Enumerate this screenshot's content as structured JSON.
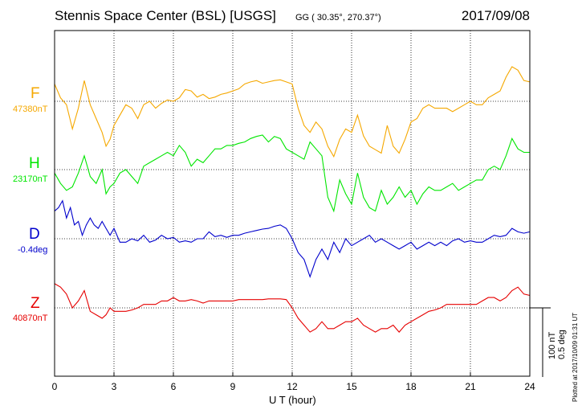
{
  "header": {
    "title": "Stennis Space Center (BSL)  [USGS]",
    "coords": "GG ( 30.35°, 270.37°)",
    "date": "2017/09/08"
  },
  "components": [
    {
      "id": "F",
      "letter": "F",
      "baseline": "47380nT",
      "color": "#f5a800"
    },
    {
      "id": "H",
      "letter": "H",
      "baseline": "23170nT",
      "color": "#00e600"
    },
    {
      "id": "D",
      "letter": "D",
      "baseline": "-0.4deg",
      "color": "#0000cc"
    },
    {
      "id": "Z",
      "letter": "Z",
      "baseline": "40870nT",
      "color": "#e60000"
    }
  ],
  "scale": {
    "nt": "100 nT",
    "deg": "0.5 deg"
  },
  "plotted_note": "Plotted at 2017/10/09 01:31 UT",
  "chart_data": {
    "type": "line",
    "xlabel": "U T (hour)",
    "xlim": [
      0,
      24
    ],
    "x_ticks": [
      0,
      3,
      6,
      9,
      12,
      15,
      18,
      21,
      24
    ],
    "grid": true,
    "units": "deviation from baseline, nT (D in 0.5 deg per 100 nT)",
    "series": [
      {
        "name": "F",
        "color": "#f5a800",
        "x": [
          0,
          0.3,
          0.6,
          0.9,
          1.2,
          1.5,
          1.8,
          2.1,
          2.4,
          2.6,
          2.8,
          3.0,
          3.3,
          3.6,
          3.9,
          4.2,
          4.5,
          4.8,
          5.1,
          5.4,
          5.7,
          6.0,
          6.3,
          6.6,
          6.9,
          7.2,
          7.5,
          7.8,
          8.1,
          8.4,
          8.7,
          9.0,
          9.3,
          9.6,
          9.9,
          10.2,
          10.5,
          10.8,
          11.1,
          11.4,
          11.7,
          12.0,
          12.3,
          12.6,
          12.9,
          13.2,
          13.5,
          13.8,
          14.1,
          14.4,
          14.7,
          15.0,
          15.3,
          15.6,
          15.9,
          16.2,
          16.5,
          16.8,
          17.1,
          17.4,
          17.7,
          18.0,
          18.3,
          18.6,
          18.9,
          19.2,
          19.5,
          19.8,
          20.1,
          20.4,
          20.7,
          21.0,
          21.3,
          21.6,
          21.9,
          22.2,
          22.5,
          22.8,
          23.1,
          23.4,
          23.7,
          24.0
        ],
        "y": [
          25,
          5,
          -5,
          -40,
          -10,
          30,
          -5,
          -25,
          -45,
          -65,
          -55,
          -35,
          -20,
          -5,
          -10,
          -25,
          -5,
          0,
          -10,
          -3,
          2,
          0,
          5,
          17,
          15,
          6,
          10,
          4,
          6,
          10,
          12,
          15,
          18,
          25,
          28,
          30,
          26,
          28,
          30,
          31,
          28,
          25,
          -10,
          -35,
          -45,
          -30,
          -40,
          -65,
          -80,
          -55,
          -40,
          -45,
          -20,
          -50,
          -65,
          -70,
          -75,
          -35,
          -65,
          -75,
          -55,
          -30,
          -25,
          -10,
          -5,
          -10,
          -10,
          -10,
          -15,
          -10,
          -5,
          0,
          -5,
          -5,
          5,
          10,
          15,
          35,
          50,
          45,
          30,
          28
        ]
      },
      {
        "name": "H",
        "color": "#00e600",
        "x": [
          0,
          0.3,
          0.6,
          0.9,
          1.2,
          1.5,
          1.8,
          2.1,
          2.4,
          2.6,
          2.8,
          3.0,
          3.3,
          3.6,
          3.9,
          4.2,
          4.5,
          4.8,
          5.1,
          5.4,
          5.7,
          6.0,
          6.3,
          6.6,
          6.9,
          7.2,
          7.5,
          7.8,
          8.1,
          8.4,
          8.7,
          9.0,
          9.3,
          9.6,
          9.9,
          10.2,
          10.5,
          10.8,
          11.1,
          11.4,
          11.7,
          12.0,
          12.3,
          12.6,
          12.9,
          13.2,
          13.5,
          13.8,
          14.1,
          14.4,
          14.7,
          15.0,
          15.3,
          15.6,
          15.9,
          16.2,
          16.5,
          16.8,
          17.1,
          17.4,
          17.7,
          18.0,
          18.3,
          18.6,
          18.9,
          19.2,
          19.5,
          19.8,
          20.1,
          20.4,
          20.7,
          21.0,
          21.3,
          21.6,
          21.9,
          22.2,
          22.5,
          22.8,
          23.1,
          23.4,
          23.7,
          24.0
        ],
        "y": [
          -5,
          -20,
          -30,
          -25,
          -5,
          20,
          -10,
          -20,
          0,
          -35,
          -25,
          -20,
          -5,
          0,
          -10,
          -20,
          5,
          10,
          15,
          20,
          25,
          20,
          35,
          25,
          5,
          15,
          10,
          20,
          30,
          30,
          35,
          35,
          38,
          40,
          45,
          48,
          50,
          40,
          48,
          45,
          30,
          25,
          20,
          15,
          40,
          30,
          20,
          -40,
          -60,
          -15,
          -35,
          -50,
          -5,
          -40,
          -55,
          -60,
          -30,
          -50,
          -40,
          -25,
          -40,
          -30,
          -50,
          -35,
          -25,
          -30,
          -30,
          -25,
          -20,
          -30,
          -25,
          -20,
          -15,
          -15,
          0,
          5,
          0,
          20,
          45,
          30,
          25,
          25
        ]
      },
      {
        "name": "D",
        "color": "#0000cc",
        "x": [
          0,
          0.2,
          0.4,
          0.6,
          0.8,
          1.0,
          1.2,
          1.4,
          1.6,
          1.8,
          2.0,
          2.2,
          2.4,
          2.6,
          2.8,
          3.0,
          3.3,
          3.6,
          3.9,
          4.2,
          4.5,
          4.8,
          5.1,
          5.4,
          5.7,
          6.0,
          6.3,
          6.6,
          6.9,
          7.2,
          7.5,
          7.8,
          8.1,
          8.4,
          8.7,
          9.0,
          9.3,
          9.6,
          9.9,
          10.2,
          10.5,
          10.8,
          11.1,
          11.4,
          11.7,
          12.0,
          12.3,
          12.6,
          12.9,
          13.2,
          13.5,
          13.8,
          14.1,
          14.4,
          14.7,
          15.0,
          15.3,
          15.6,
          15.9,
          16.2,
          16.5,
          16.8,
          17.1,
          17.4,
          17.7,
          18.0,
          18.3,
          18.6,
          18.9,
          19.2,
          19.5,
          19.8,
          20.1,
          20.4,
          20.7,
          21.0,
          21.3,
          21.6,
          21.9,
          22.2,
          22.5,
          22.8,
          23.1,
          23.4,
          23.7,
          24.0
        ],
        "y": [
          40,
          45,
          55,
          30,
          45,
          20,
          25,
          5,
          20,
          30,
          20,
          15,
          25,
          15,
          5,
          15,
          -5,
          -5,
          0,
          -3,
          5,
          -5,
          -2,
          5,
          0,
          2,
          -5,
          -3,
          -5,
          0,
          0,
          10,
          3,
          5,
          2,
          5,
          5,
          8,
          10,
          12,
          14,
          15,
          18,
          20,
          15,
          0,
          -20,
          -30,
          -55,
          -30,
          -15,
          -30,
          -5,
          -20,
          0,
          -10,
          -5,
          0,
          5,
          -5,
          0,
          -5,
          -10,
          -15,
          -10,
          -5,
          -15,
          -10,
          -5,
          -10,
          -5,
          -10,
          -3,
          0,
          -5,
          -3,
          -5,
          -5,
          0,
          5,
          3,
          5,
          15,
          10,
          8,
          10
        ]
      },
      {
        "name": "Z",
        "color": "#e60000",
        "x": [
          0,
          0.3,
          0.6,
          0.9,
          1.2,
          1.5,
          1.8,
          2.1,
          2.4,
          2.6,
          2.8,
          3.0,
          3.3,
          3.6,
          3.9,
          4.2,
          4.5,
          4.8,
          5.1,
          5.4,
          5.7,
          6.0,
          6.3,
          6.6,
          6.9,
          7.2,
          7.5,
          7.8,
          8.1,
          8.4,
          8.7,
          9.0,
          9.3,
          9.6,
          9.9,
          10.2,
          10.5,
          10.8,
          11.1,
          11.4,
          11.7,
          12.0,
          12.3,
          12.6,
          12.9,
          13.2,
          13.5,
          13.8,
          14.1,
          14.4,
          14.7,
          15.0,
          15.3,
          15.6,
          15.9,
          16.2,
          16.5,
          16.8,
          17.1,
          17.4,
          17.7,
          18.0,
          18.3,
          18.6,
          18.9,
          19.2,
          19.5,
          19.8,
          20.1,
          20.4,
          20.7,
          21.0,
          21.3,
          21.6,
          21.9,
          22.2,
          22.5,
          22.8,
          23.1,
          23.4,
          23.7,
          24.0
        ],
        "y": [
          35,
          30,
          20,
          0,
          10,
          25,
          -5,
          -10,
          -15,
          -10,
          0,
          -5,
          -5,
          -5,
          -3,
          0,
          5,
          5,
          5,
          10,
          10,
          15,
          10,
          10,
          12,
          10,
          7,
          10,
          10,
          10,
          10,
          10,
          12,
          12,
          12,
          12,
          12,
          13,
          13,
          13,
          12,
          0,
          -15,
          -25,
          -35,
          -30,
          -20,
          -30,
          -30,
          -25,
          -20,
          -20,
          -15,
          -25,
          -30,
          -35,
          -30,
          -30,
          -25,
          -35,
          -25,
          -20,
          -15,
          -10,
          -5,
          -3,
          0,
          5,
          5,
          5,
          5,
          5,
          5,
          10,
          15,
          15,
          10,
          15,
          25,
          30,
          20,
          18
        ]
      }
    ]
  }
}
